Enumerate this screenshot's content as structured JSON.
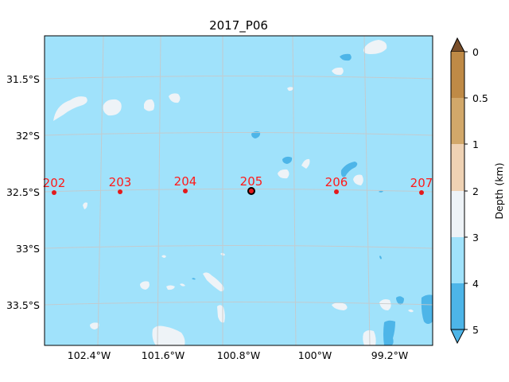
{
  "map": {
    "title": "2017_P06",
    "lat_labels": [
      "31.5°S",
      "32°S",
      "32.5°S",
      "33°S",
      "33.5°S"
    ],
    "lon_labels": [
      "102.4°W",
      "101.6°W",
      "100.8°W",
      "100°W",
      "99.2°W"
    ],
    "stations": [
      {
        "label": "202",
        "highlighted": false
      },
      {
        "label": "203",
        "highlighted": false
      },
      {
        "label": "204",
        "highlighted": false
      },
      {
        "label": "205",
        "highlighted": true
      },
      {
        "label": "206",
        "highlighted": false
      },
      {
        "label": "207",
        "highlighted": false
      }
    ],
    "station_color": "#e31a1c",
    "highlight_edge_color": "#000000"
  },
  "colorbar": {
    "label": "Depth (km)",
    "ticks": [
      "0",
      "0.5",
      "1",
      "2",
      "3",
      "4",
      "5"
    ],
    "bins": [
      {
        "range": "0–0.5",
        "color": "#bf8a46"
      },
      {
        "range": "0.5–1",
        "color": "#d2a86a"
      },
      {
        "range": "1–2",
        "color": "#efd2b4"
      },
      {
        "range": "2–3",
        "color": "#eef3f7"
      },
      {
        "range": "3–4",
        "color": "#a0e2fb"
      },
      {
        "range": "4–5",
        "color": "#4db5e8"
      }
    ],
    "extend_low_color": "#7a4f2a",
    "extend_high_color": "#4db5e8"
  },
  "colors": {
    "ocean_main": "#a0e2fb",
    "shallow_patch": "#eef3f7",
    "deep_patch": "#4db5e8",
    "grid": "#c8c8c8"
  }
}
